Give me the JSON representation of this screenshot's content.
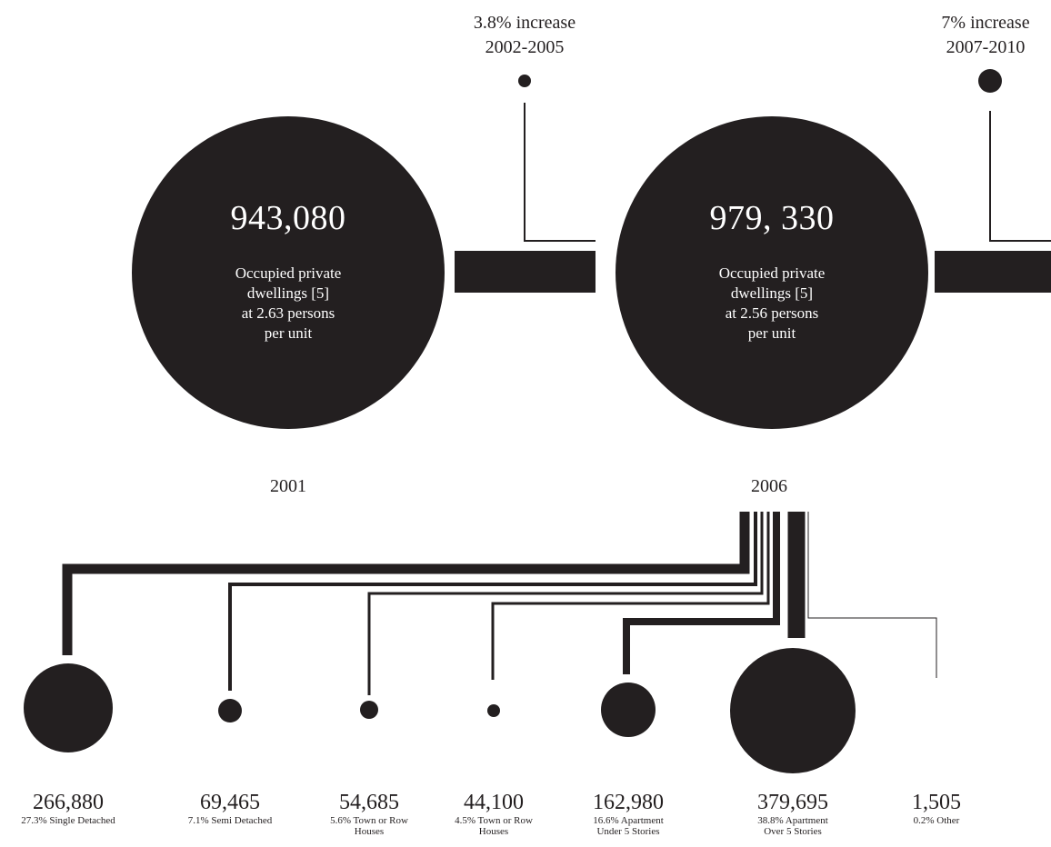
{
  "years": [
    {
      "label": "2001",
      "total": "943,080",
      "desc_line1": "Occupied private",
      "desc_line2": "dwellings [5]",
      "desc_line3": "at 2.63 persons",
      "desc_line4": "per unit"
    },
    {
      "label": "2006",
      "total": "979, 330",
      "desc_line1": "Occupied private",
      "desc_line2": "dwellings [5]",
      "desc_line3": "at 2.56 persons",
      "desc_line4": "per unit"
    }
  ],
  "increases": [
    {
      "pct": "3.8% increase",
      "period": "2002-2005"
    },
    {
      "pct": "7% increase",
      "period": "2007-2010"
    }
  ],
  "breakdown": [
    {
      "count": "266,880",
      "label_line1": "27.3% Single Detached",
      "label_line2": "",
      "share_pct": 27.3
    },
    {
      "count": "69,465",
      "label_line1": "7.1% Semi Detached",
      "label_line2": "",
      "share_pct": 7.1
    },
    {
      "count": "54,685",
      "label_line1": "5.6% Town or Row",
      "label_line2": "Houses",
      "share_pct": 5.6
    },
    {
      "count": "44,100",
      "label_line1": "4.5% Town or Row",
      "label_line2": "Houses",
      "share_pct": 4.5
    },
    {
      "count": "162,980",
      "label_line1": "16.6% Apartment",
      "label_line2": "Under 5 Stories",
      "share_pct": 16.6
    },
    {
      "count": "379,695",
      "label_line1": "38.8% Apartment",
      "label_line2": "Over 5 Stories",
      "share_pct": 38.8
    },
    {
      "count": "1,505",
      "label_line1": "0.2% Other",
      "label_line2": "",
      "share_pct": 0.2
    }
  ]
}
